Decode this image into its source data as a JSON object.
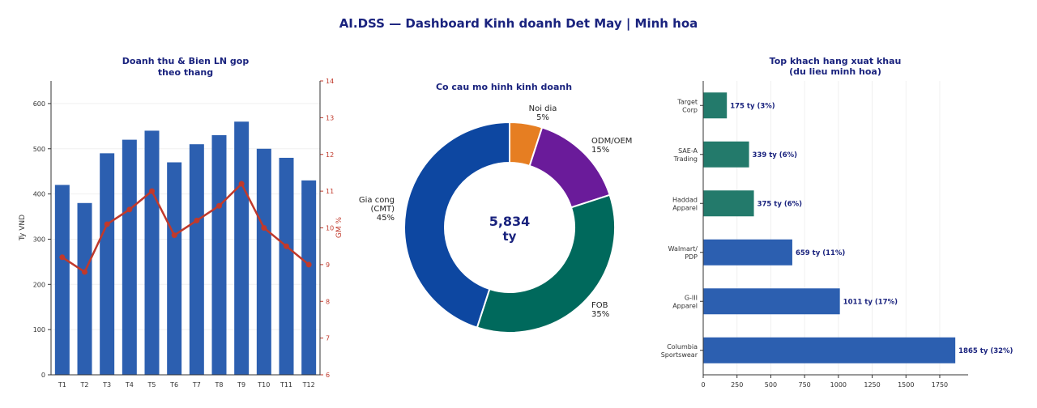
{
  "title": "AI.DSS — Dashboard Kinh doanh Det May  |  Minh hoa",
  "colors": {
    "title": "#1a237e",
    "bar": "#2c5fb0",
    "line": "#c0392b",
    "green": "#237a6b"
  },
  "chart_data": [
    {
      "type": "bar+line",
      "title": "Doanh thu & Bien LN gop\ntheo thang",
      "title_lines": [
        "Doanh thu & Bien LN gop",
        "theo thang"
      ],
      "categories": [
        "T1",
        "T2",
        "T3",
        "T4",
        "T5",
        "T6",
        "T7",
        "T8",
        "T9",
        "T10",
        "T11",
        "T12"
      ],
      "series": [
        {
          "axis": "left",
          "kind": "bar",
          "values": [
            420,
            380,
            490,
            520,
            540,
            470,
            510,
            530,
            560,
            500,
            480,
            430
          ]
        },
        {
          "axis": "right",
          "kind": "line",
          "values": [
            9.2,
            8.8,
            10.1,
            10.5,
            11.0,
            9.8,
            10.2,
            10.6,
            11.2,
            10.0,
            9.5,
            9.0
          ]
        }
      ],
      "ylabel": "Ty VND",
      "y2label": "GM %",
      "ylim": [
        0,
        650
      ],
      "yticks": [
        0,
        100,
        200,
        300,
        400,
        500,
        600
      ],
      "y2lim": [
        6,
        14
      ],
      "y2ticks": [
        6,
        7,
        8,
        9,
        10,
        11,
        12,
        13,
        14
      ],
      "grid": "horizontal"
    },
    {
      "type": "pie",
      "style": "donut",
      "title": "Co cau mo hinh kinh doanh",
      "center_value": "5,834",
      "center_unit": "ty",
      "slices": [
        {
          "label": "Noi dia",
          "pct": "5%",
          "value": 5,
          "color": "#e67e22"
        },
        {
          "label": "ODM/OEM",
          "pct": "15%",
          "value": 15,
          "color": "#6a1b9a"
        },
        {
          "label": "FOB",
          "pct": "35%",
          "value": 35,
          "color": "#00695c"
        },
        {
          "label": "Gia cong\n(CMT)",
          "label_lines": [
            "Gia cong",
            "(CMT)"
          ],
          "pct": "45%",
          "value": 45,
          "color": "#0d47a1"
        }
      ]
    },
    {
      "type": "bar",
      "orientation": "horizontal",
      "title_lines": [
        "Top khach hang xuat khau",
        "(du lieu minh hoa)"
      ],
      "categories": [
        [
          "Target",
          "Corp"
        ],
        [
          "SAE-A",
          "Trading"
        ],
        [
          "Haddad",
          "Apparel"
        ],
        [
          "Walmart/",
          "PDP"
        ],
        [
          "G-III",
          "Apparel"
        ],
        [
          "Columbia",
          "Sportswear"
        ]
      ],
      "values": [
        175,
        339,
        375,
        659,
        1011,
        1865
      ],
      "labels": [
        "175 ty (3%)",
        "339 ty (6%)",
        "375 ty (6%)",
        "659 ty (11%)",
        "1011 ty (17%)",
        "1865 ty (32%)"
      ],
      "bar_colors": [
        "#237a6b",
        "#237a6b",
        "#237a6b",
        "#2c5fb0",
        "#2c5fb0",
        "#2c5fb0"
      ],
      "xlim": [
        0,
        1960
      ],
      "xticks": [
        0,
        250,
        500,
        750,
        1000,
        1250,
        1500,
        1750
      ],
      "grid": "vertical"
    }
  ]
}
